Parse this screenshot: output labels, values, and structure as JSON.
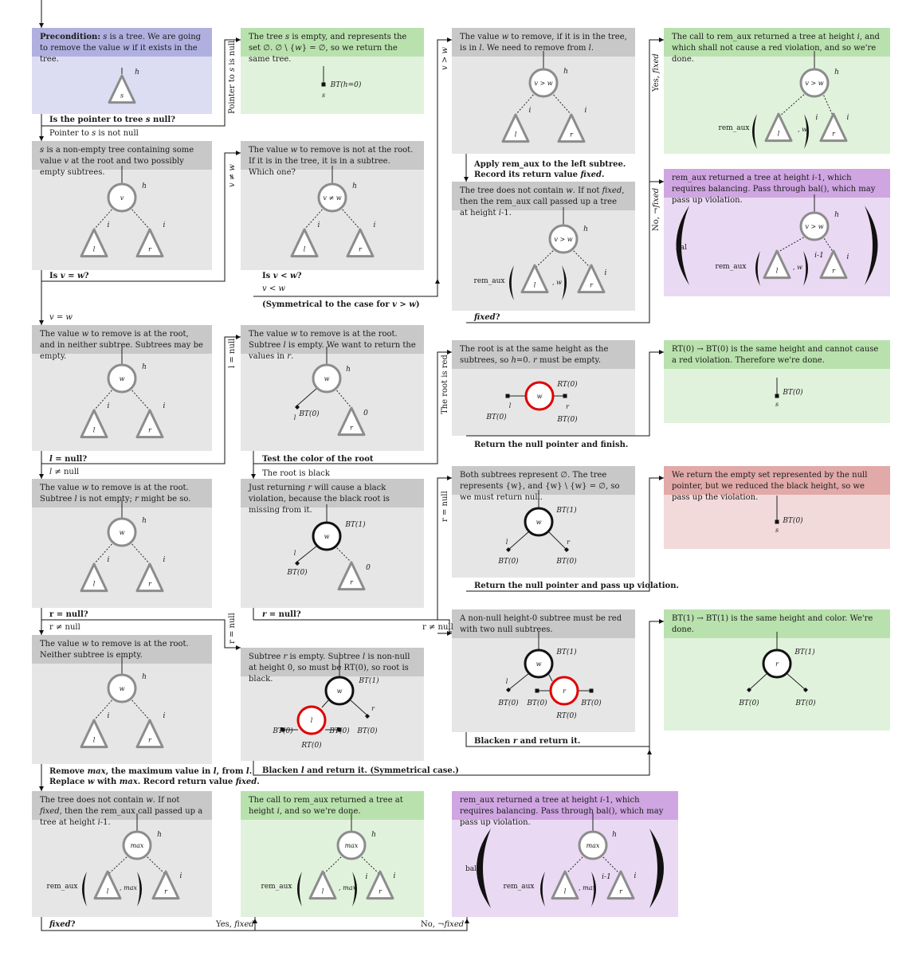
{
  "colors": {
    "gray_hdr": "#c8c8c8",
    "gray_body": "#e6e6e6",
    "blue_hdr": "#b0b0e0",
    "blue_body": "#dcdcf2",
    "green_hdr": "#b9e1ad",
    "green_body": "#e1f2dc",
    "purple_hdr": "#cfa6e1",
    "purple_body": "#ead9f2",
    "red_hdr": "#e2a9a9",
    "red_body": "#f2dada"
  },
  "boxes": {
    "b_pre": {
      "html": "<b>Precondition:</b> <i>s</i> is a tree.  We are going to remove the value <i>w</i> if it exists in the tree."
    },
    "b_empty": {
      "html": "The tree <i>s</i> is empty, and represents the set ∅.  ∅ \\ {<i>w</i>} = ∅, so we return the same tree."
    },
    "b_left": {
      "html": "The value <i>w</i> to remove, if it is in the tree, is in <i>l</i>.  We need to remove from <i>l</i>."
    },
    "b_lfix": {
      "html": "The call to rem_aux returned a tree at height <i>i</i>, and which shall not cause a red violation, and so we're done."
    },
    "b_nonempty": {
      "html": "<i>s</i> is a non-empty tree containing some value <i>v</i> at the root and two possibly empty subtrees."
    },
    "b_vnew": {
      "html": "The value <i>w</i> to remove is not at the root.  If it is in the tree, it is in a subtree.  Which one?"
    },
    "b_lnot": {
      "html": "The tree does not contain <i>w</i>.  If not <i>fixed</i>, then the rem_aux call passed up a tree at height <i>i</i>-1."
    },
    "b_lbal": {
      "html": "rem_aux returned a tree at height <i>i</i>-1, which requires balancing.  Pass through bal(), which may pass up violation."
    },
    "b_root": {
      "html": "The value <i>w</i> to remove is at the root, and in neither subtree.  Subtrees may be empty."
    },
    "b_lnull": {
      "html": "The value <i>w</i> to remove is at the root.  Subtree <i>l</i> is empty.  We want to return the values in <i>r</i>."
    },
    "b_red": {
      "html": "The root is at the same height as the subtrees, so <i>h</i>=0.  <i>r</i> must be empty."
    },
    "b_rt": {
      "html": "RT(0) → BT(0) is the same height and cannot cause a red violation.  Therefore we're done."
    },
    "b_lnn": {
      "html": "The value <i>w</i> to remove is at the root.  Subtree <i>l</i> is not empty; <i>r</i> might be so."
    },
    "b_black": {
      "html": "Just returning <i>r</i> will cause a black violation, because the black root is missing from it."
    },
    "b_both": {
      "html": "Both subtrees represent ∅.  The tree represents {w}, and {w} \\ {w} = ∅, so we must return null."
    },
    "b_viol": {
      "html": "We return the empty set represented by the null pointer, but we reduced the black height, so we pass up the violation."
    },
    "b_neither": {
      "html": "The value <i>w</i> to remove is at the root.  Neither subtree is empty."
    },
    "b_rnull": {
      "html": "Subtree <i>r</i> is empty.  Subtree <i>l</i> is non-null at height 0, so must be RT(0), so root is black."
    },
    "b_h0": {
      "html": "A non-null height-0 subtree must be red with two null subtrees."
    },
    "b_bt1": {
      "html": "BT(1) → BT(1) is the same height and color.   We're done."
    },
    "b_max": {
      "html": "The tree does not contain <i>w</i>.  If not <i>fixed</i>, then the rem_aux call passed up a tree at height <i>i</i>-1."
    },
    "b_mfix": {
      "html": "The call to rem_aux returned a tree at height <i>i</i>, and so we're done."
    },
    "b_mbal": {
      "html": "rem_aux returned a tree at height <i>i</i>-1, which requires balancing.  Pass through bal(), which may pass up violation."
    }
  },
  "conds": {
    "c_pre": {
      "html": "Is the pointer to tree <i>s</i> null?"
    },
    "c_vw": {
      "html": "Is <i>v</i> = <i>w</i>?"
    },
    "c_vlt": {
      "html": "Is <i>v</i> &lt; <i>w</i>?"
    },
    "c_sym": {
      "html": "(Symmetrical to the case for <i>v</i> &gt; <i>w</i>)"
    },
    "c_apply": {
      "html": "Apply rem_aux to the left subtree.<br>Record its return value <i>fixed</i>."
    },
    "c_fixed1": {
      "html": "<i>fixed</i>?"
    },
    "c_lnull": {
      "html": "<i>l</i> = null?"
    },
    "c_test": {
      "html": "Test the color of the root"
    },
    "c_retnull": {
      "html": "Return the null pointer and finish."
    },
    "c_rnull1": {
      "html": "r = null?"
    },
    "c_rnull2": {
      "html": "<i>r</i> = null?"
    },
    "c_passup": {
      "html": "Return the null pointer and pass up violation."
    },
    "c_remove": {
      "html": "Remove <i>max</i>, the maximum value in <i>l</i>, from <i>l</i>.<br>Replace <i>w</i> with <i>max</i>.  Record return value <i>fixed</i>."
    },
    "c_blackenl": {
      "html": "Blacken <i>l</i> and return it.  (Symmetrical case.)"
    },
    "c_blackenr": {
      "html": "Blacken <i>r</i> and return it."
    },
    "c_fixed2": {
      "html": "<i>fixed</i>?"
    }
  },
  "labels": {
    "l_notnull": {
      "html": "Pointer to <i>s</i> is not null"
    },
    "l_vneqw": {
      "html": "<i>v</i> = <i>w</i>"
    },
    "l_vltw": {
      "html": "<i>v</i> &lt; <i>w</i>"
    },
    "l_lneq": {
      "html": "<i>l</i> ≠ null"
    },
    "l_black": {
      "html": "The root is black"
    },
    "l_rneq1": {
      "html": "r ≠ null"
    },
    "l_rneq2": {
      "html": "r ≠ null"
    },
    "l_yes": {
      "html": "Yes, <i>fixed</i>"
    },
    "l_no": {
      "html": "No, ¬<i>fixed</i>"
    }
  },
  "vlabels": {
    "v_ptr": {
      "html": "Pointer to <i>s</i> is null"
    },
    "v_gt": {
      "html": "<i>v</i> &gt; <i>w</i>"
    },
    "v_yes": {
      "html": "Yes, <i>fixed</i>"
    },
    "v_neq": {
      "html": "<i>v</i> ≠ <i>w</i>"
    },
    "v_no": {
      "html": "No, ¬<i>fixed</i>"
    },
    "v_leq": {
      "html": "l = null"
    },
    "v_red": {
      "html": "The root is red"
    },
    "v_req": {
      "html": "r = null"
    },
    "v_req2": {
      "html": "r = null"
    }
  },
  "tree_text": {
    "s": "s",
    "h": "h",
    "i": "i",
    "i_1": "i-1",
    "l": "l",
    "r": "r",
    "v": "v",
    "w": "w",
    "v_ne_w": "v ≠ w",
    "v_gt_w": "v > w",
    "max": "max",
    "comma_w": ", w",
    "comma_max": ", max",
    "bt_h0": "BT(h=0)",
    "bt0": "BT(0)",
    "bt1": "BT(1)",
    "rt0": "RT(0)",
    "zero": "0",
    "rem_aux": "rem_aux",
    "bal": "bal"
  }
}
